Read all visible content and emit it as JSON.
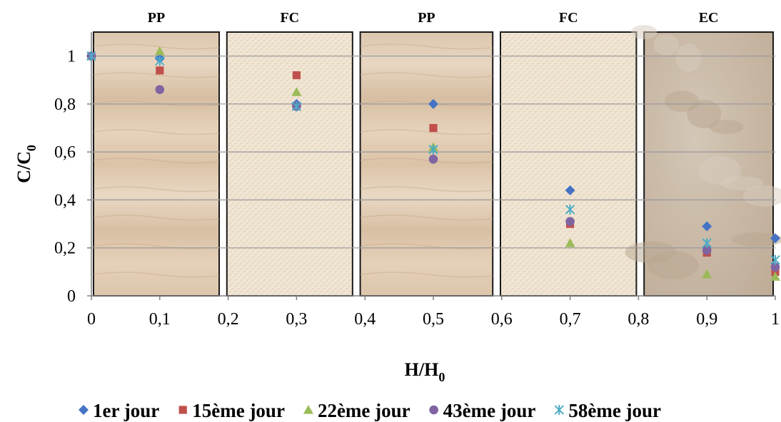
{
  "chart_data": {
    "type": "scatter",
    "title": "",
    "xlabel": {
      "main": "H/H",
      "sub": "0"
    },
    "ylabel": {
      "main": "C/C",
      "sub": "0"
    },
    "xlim": [
      0,
      1
    ],
    "ylim": [
      0,
      1.1
    ],
    "x_ticks": [
      "0",
      "0,1",
      "0,2",
      "0,3",
      "0,4",
      "0,5",
      "0,6",
      "0,7",
      "0,8",
      "0,9",
      "1"
    ],
    "y_ticks": [
      "0",
      "0,2",
      "0,4",
      "0,6",
      "0,8",
      "1"
    ],
    "grid": true,
    "legend_position": "bottom",
    "zones": [
      {
        "label": "PP",
        "x_start": 0.0,
        "x_end": 0.19,
        "texture": "wood"
      },
      {
        "label": "FC",
        "x_start": 0.195,
        "x_end": 0.385,
        "texture": "fabric"
      },
      {
        "label": "PP",
        "x_start": 0.39,
        "x_end": 0.59,
        "texture": "wood"
      },
      {
        "label": "FC",
        "x_start": 0.595,
        "x_end": 0.8,
        "texture": "fabric"
      },
      {
        "label": "EC",
        "x_start": 0.805,
        "x_end": 1.0,
        "texture": "stone"
      }
    ],
    "series": [
      {
        "name": "1er jour",
        "marker": "diamond",
        "color": "#4472C4",
        "points": [
          [
            0,
            1.0
          ],
          [
            0.1,
            0.99
          ],
          [
            0.3,
            0.8
          ],
          [
            0.5,
            0.8
          ],
          [
            0.7,
            0.44
          ],
          [
            0.9,
            0.29
          ],
          [
            1.0,
            0.24
          ]
        ]
      },
      {
        "name": "15ème jour",
        "marker": "square",
        "color": "#C0504D",
        "points": [
          [
            0,
            1.0
          ],
          [
            0.1,
            0.94
          ],
          [
            0.3,
            0.92
          ],
          [
            0.5,
            0.7
          ],
          [
            0.7,
            0.3
          ],
          [
            0.9,
            0.18
          ],
          [
            1.0,
            0.1
          ]
        ]
      },
      {
        "name": "22ème jour",
        "marker": "triangle",
        "color": "#9BBB59",
        "points": [
          [
            0,
            1.0
          ],
          [
            0.1,
            1.02
          ],
          [
            0.3,
            0.85
          ],
          [
            0.5,
            0.62
          ],
          [
            0.7,
            0.22
          ],
          [
            0.9,
            0.09
          ],
          [
            1.0,
            0.08
          ]
        ]
      },
      {
        "name": "43ème jour",
        "marker": "circle",
        "color": "#8064A2",
        "points": [
          [
            0,
            1.0
          ],
          [
            0.1,
            0.86
          ],
          [
            0.3,
            0.79
          ],
          [
            0.5,
            0.57
          ],
          [
            0.7,
            0.31
          ],
          [
            0.9,
            0.19
          ],
          [
            1.0,
            0.12
          ]
        ]
      },
      {
        "name": "58ème jour",
        "marker": "star",
        "color": "#4BACC6",
        "points": [
          [
            0,
            1.0
          ],
          [
            0.1,
            0.98
          ],
          [
            0.3,
            0.79
          ],
          [
            0.5,
            0.61
          ],
          [
            0.7,
            0.36
          ],
          [
            0.9,
            0.22
          ],
          [
            1.0,
            0.15
          ]
        ]
      }
    ]
  }
}
